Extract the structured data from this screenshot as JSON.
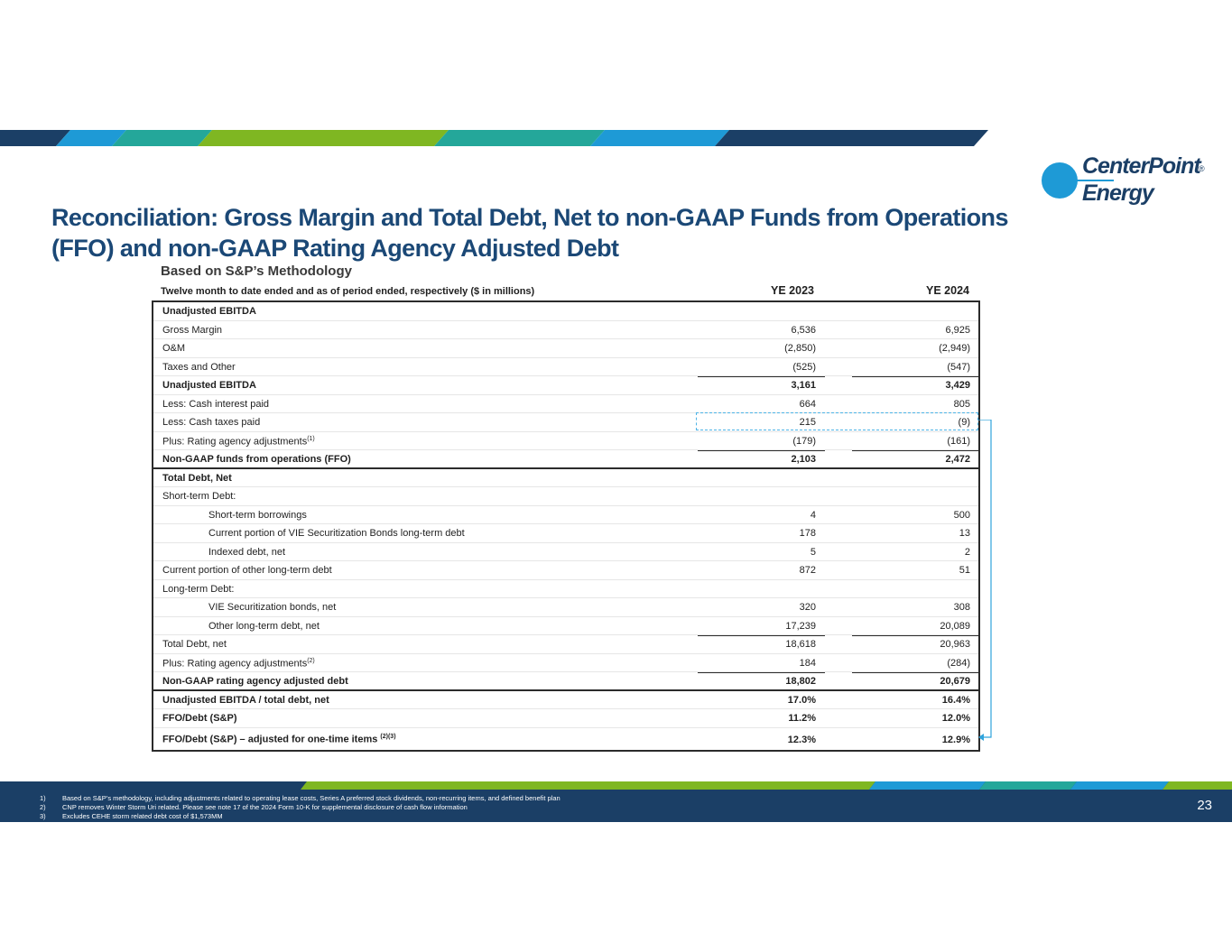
{
  "header": {
    "title": "Reconciliation: Gross Margin and Total Debt, Net to non-GAAP Funds from Operations (FFO) and non-GAAP Rating Agency Adjusted Debt",
    "logo_line1": "CenterPoint",
    "logo_line2": "Energy",
    "logo_mark": "®"
  },
  "colors": {
    "navy": "#1b3f66",
    "blue": "#1e9ad6",
    "teal": "#24a79a",
    "green": "#7fb722",
    "title": "#1b4876"
  },
  "table": {
    "subtitle": "Based on S&P’s Methodology",
    "header_label": "Twelve month to date ended and as of period ended, respectively ($ in millions)",
    "col1": "YE 2023",
    "col2": "YE 2024",
    "rows": [
      {
        "label": "Unadjusted EBITDA",
        "v1": "",
        "v2": ""
      },
      {
        "label": "Gross Margin",
        "v1": "6,536",
        "v2": "6,925"
      },
      {
        "label": "O&M",
        "v1": "(2,850)",
        "v2": "(2,949)"
      },
      {
        "label": "Taxes and Other",
        "v1": "(525)",
        "v2": "(547)"
      },
      {
        "label": "Unadjusted EBITDA",
        "v1": "3,161",
        "v2": "3,429"
      },
      {
        "label": "Less: Cash interest paid",
        "v1": "664",
        "v2": "805"
      },
      {
        "label": "Less: Cash taxes paid",
        "v1": "215",
        "v2": "(9)"
      },
      {
        "label": "Plus: Rating agency adjustments",
        "sup": "(1)",
        "v1": "(179)",
        "v2": "(161)"
      },
      {
        "label": "Non-GAAP funds from operations (FFO)",
        "v1": "2,103",
        "v2": "2,472"
      },
      {
        "label": "Total Debt, Net",
        "v1": "",
        "v2": ""
      },
      {
        "label": "Short-term Debt:",
        "v1": "",
        "v2": ""
      },
      {
        "label": "Short-term borrowings",
        "v1": "4",
        "v2": "500"
      },
      {
        "label": "Current portion of VIE Securitization Bonds long-term debt",
        "v1": "178",
        "v2": "13"
      },
      {
        "label": "Indexed debt, net",
        "v1": "5",
        "v2": "2"
      },
      {
        "label": "Current portion of other long-term debt",
        "v1": "872",
        "v2": "51"
      },
      {
        "label": "Long-term Debt:",
        "v1": "",
        "v2": ""
      },
      {
        "label": "VIE Securitization bonds, net",
        "v1": "320",
        "v2": "308"
      },
      {
        "label": "Other long-term debt, net",
        "v1": "17,239",
        "v2": "20,089"
      },
      {
        "label": "Total Debt, net",
        "v1": "18,618",
        "v2": "20,963"
      },
      {
        "label": "Plus: Rating agency adjustments",
        "sup": "(2)",
        "v1": "184",
        "v2": "(284)"
      },
      {
        "label": "Non-GAAP rating agency adjusted debt",
        "v1": "18,802",
        "v2": "20,679"
      },
      {
        "label": "Unadjusted EBITDA / total debt, net",
        "v1": "17.0%",
        "v2": "16.4%"
      },
      {
        "label": "FFO/Debt (S&P)",
        "v1": "11.2%",
        "v2": "12.0%"
      },
      {
        "label": "FFO/Debt (S&P) – adjusted for one-time items ",
        "sup": "(2)(3)",
        "v1": "12.3%",
        "v2": "12.9%"
      }
    ]
  },
  "footer": {
    "notes": [
      {
        "num": "1)",
        "text": "Based on S&P’s methodology, including adjustments related to operating lease costs, Series A preferred stock dividends, non-recurring items, and defined benefit plan"
      },
      {
        "num": "2)",
        "text": "CNP removes Winter Storm Uri related. Please see note 17 of the 2024 Form 10-K for supplemental disclosure of cash flow information"
      },
      {
        "num": "3)",
        "text": "Excludes CEHE storm related debt cost of $1,573MM"
      }
    ],
    "page_number": "23"
  }
}
